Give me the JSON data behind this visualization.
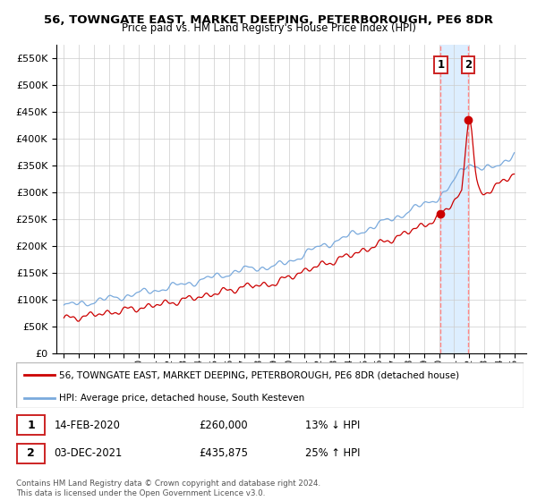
{
  "title1": "56, TOWNGATE EAST, MARKET DEEPING, PETERBOROUGH, PE6 8DR",
  "title2": "Price paid vs. HM Land Registry's House Price Index (HPI)",
  "legend_line1": "56, TOWNGATE EAST, MARKET DEEPING, PETERBOROUGH, PE6 8DR (detached house)",
  "legend_line2": "HPI: Average price, detached house, South Kesteven",
  "annotation1_date": "14-FEB-2020",
  "annotation1_price": "£260,000",
  "annotation1_hpi": "13% ↓ HPI",
  "annotation2_date": "03-DEC-2021",
  "annotation2_price": "£435,875",
  "annotation2_hpi": "25% ↑ HPI",
  "footer": "Contains HM Land Registry data © Crown copyright and database right 2024.\nThis data is licensed under the Open Government Licence v3.0.",
  "hpi_color": "#7aaadd",
  "price_color": "#cc0000",
  "point_color": "#cc0000",
  "vline_color": "#ff8888",
  "shade_color": "#ddeeff",
  "ylim_min": 0,
  "ylim_max": 575000,
  "purchase1_year": 2020.1,
  "purchase1_value": 260000,
  "purchase2_year": 2021.92,
  "purchase2_value": 435875
}
